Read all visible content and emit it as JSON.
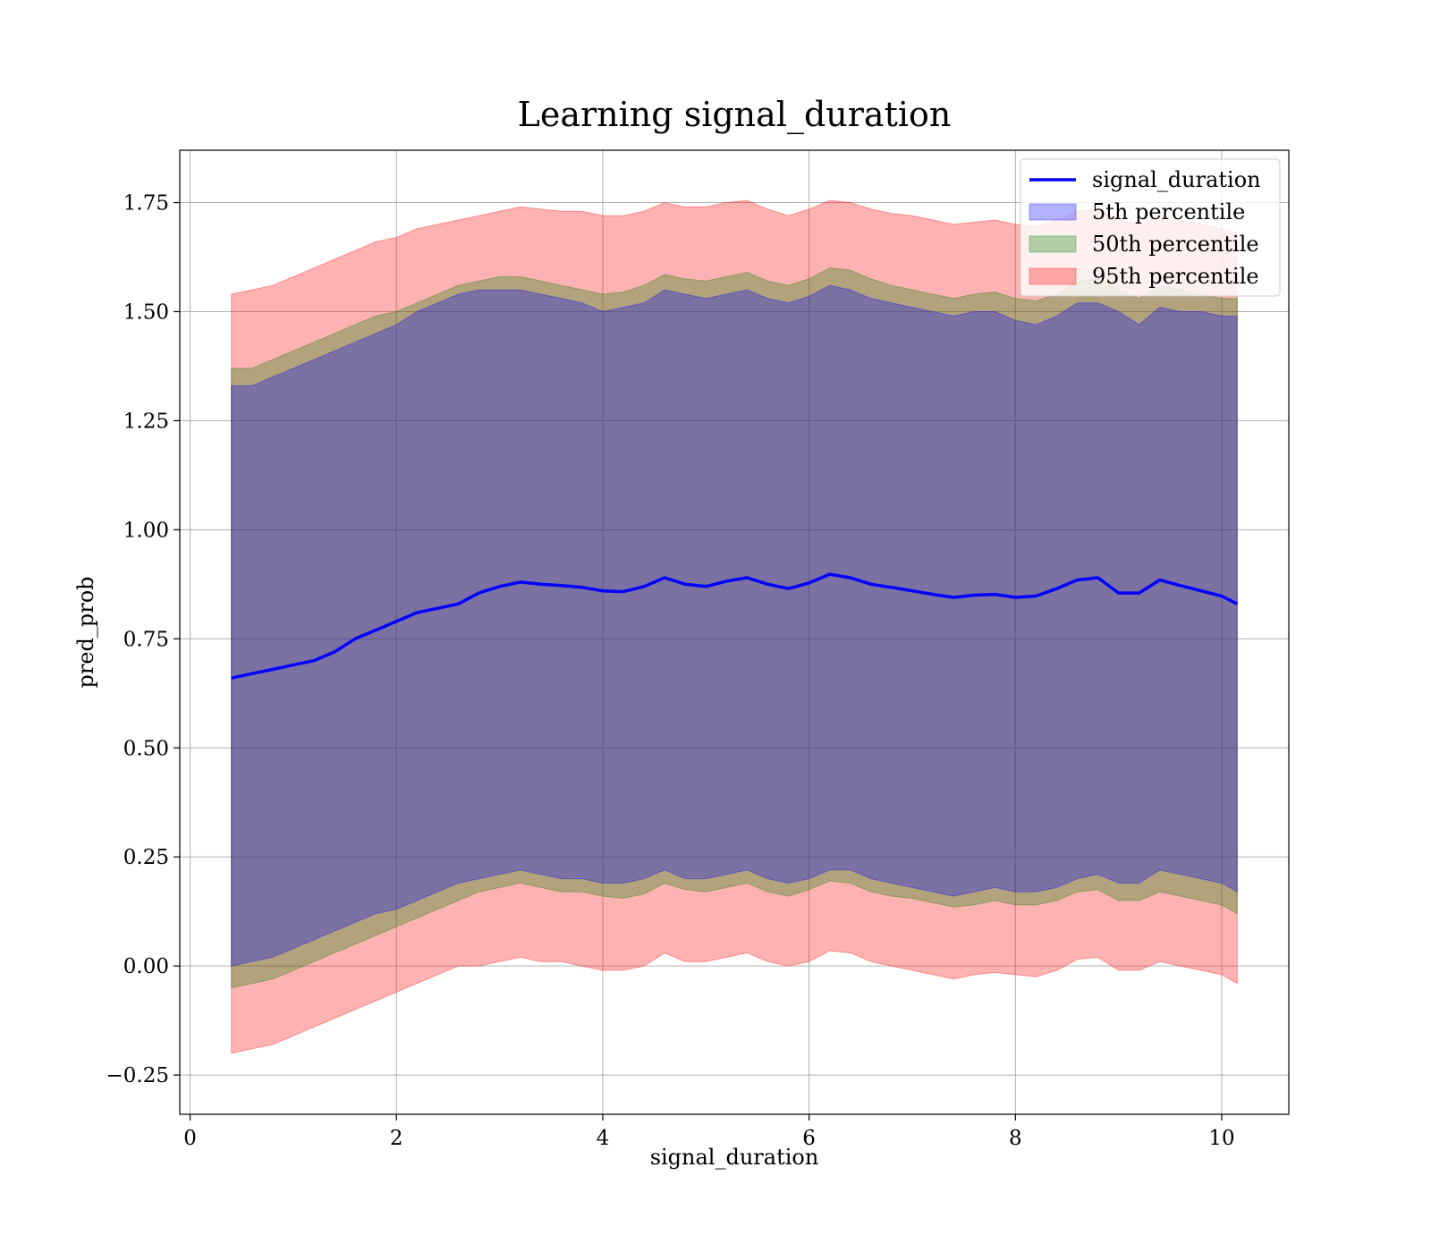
{
  "chart_data": {
    "type": "line",
    "title": "Learning signal_duration",
    "xlabel": "signal_duration",
    "ylabel": "pred_prob",
    "xlim": [
      -0.1,
      10.65
    ],
    "ylim": [
      -0.34,
      1.87
    ],
    "xticks": [
      0,
      2,
      4,
      6,
      8,
      10
    ],
    "xtick_labels": [
      "0",
      "2",
      "4",
      "6",
      "8",
      "10"
    ],
    "yticks": [
      -0.25,
      0.0,
      0.25,
      0.5,
      0.75,
      1.0,
      1.25,
      1.5,
      1.75
    ],
    "ytick_labels": [
      "−0.25",
      "0.00",
      "0.25",
      "0.50",
      "0.75",
      "1.00",
      "1.25",
      "1.50",
      "1.75"
    ],
    "grid": true,
    "legend_position": "top-right",
    "x": [
      0.4,
      0.6,
      0.8,
      1.0,
      1.2,
      1.4,
      1.6,
      1.8,
      2.0,
      2.2,
      2.4,
      2.6,
      2.8,
      3.0,
      3.2,
      3.4,
      3.6,
      3.8,
      4.0,
      4.2,
      4.4,
      4.6,
      4.8,
      5.0,
      5.2,
      5.4,
      5.6,
      5.8,
      6.0,
      6.2,
      6.4,
      6.6,
      6.8,
      7.0,
      7.2,
      7.4,
      7.6,
      7.8,
      8.0,
      8.2,
      8.4,
      8.6,
      8.8,
      9.0,
      9.2,
      9.4,
      9.6,
      9.8,
      10.0,
      10.15
    ],
    "series": [
      {
        "name": "signal_duration",
        "kind": "line",
        "color": "#0000ff",
        "values": [
          0.66,
          0.67,
          0.68,
          0.69,
          0.7,
          0.72,
          0.75,
          0.77,
          0.79,
          0.81,
          0.82,
          0.83,
          0.855,
          0.87,
          0.88,
          0.875,
          0.872,
          0.868,
          0.86,
          0.858,
          0.87,
          0.89,
          0.875,
          0.87,
          0.882,
          0.89,
          0.875,
          0.865,
          0.878,
          0.898,
          0.89,
          0.875,
          0.868,
          0.86,
          0.852,
          0.845,
          0.85,
          0.852,
          0.845,
          0.848,
          0.865,
          0.885,
          0.89,
          0.855,
          0.855,
          0.885,
          0.872,
          0.86,
          0.848,
          0.83
        ]
      },
      {
        "name": "5th percentile",
        "kind": "band",
        "color": "#0000ff",
        "upper": [
          1.33,
          1.33,
          1.35,
          1.37,
          1.39,
          1.41,
          1.43,
          1.45,
          1.47,
          1.5,
          1.52,
          1.54,
          1.55,
          1.55,
          1.55,
          1.54,
          1.53,
          1.52,
          1.5,
          1.51,
          1.52,
          1.55,
          1.54,
          1.53,
          1.54,
          1.55,
          1.53,
          1.52,
          1.535,
          1.56,
          1.55,
          1.53,
          1.52,
          1.51,
          1.5,
          1.49,
          1.5,
          1.5,
          1.48,
          1.47,
          1.49,
          1.52,
          1.52,
          1.5,
          1.47,
          1.51,
          1.5,
          1.5,
          1.49,
          1.49
        ],
        "lower": [
          0.0,
          0.01,
          0.02,
          0.04,
          0.06,
          0.08,
          0.1,
          0.12,
          0.13,
          0.15,
          0.17,
          0.19,
          0.2,
          0.21,
          0.22,
          0.21,
          0.2,
          0.2,
          0.19,
          0.19,
          0.2,
          0.22,
          0.2,
          0.2,
          0.21,
          0.22,
          0.2,
          0.19,
          0.2,
          0.22,
          0.22,
          0.2,
          0.19,
          0.18,
          0.17,
          0.16,
          0.17,
          0.18,
          0.17,
          0.17,
          0.18,
          0.2,
          0.21,
          0.19,
          0.19,
          0.22,
          0.21,
          0.2,
          0.19,
          0.17
        ]
      },
      {
        "name": "50th percentile",
        "kind": "band",
        "color": "#008000",
        "upper": [
          1.37,
          1.37,
          1.39,
          1.41,
          1.43,
          1.45,
          1.47,
          1.49,
          1.5,
          1.52,
          1.54,
          1.56,
          1.57,
          1.58,
          1.58,
          1.57,
          1.56,
          1.55,
          1.54,
          1.545,
          1.56,
          1.585,
          1.575,
          1.57,
          1.58,
          1.59,
          1.57,
          1.56,
          1.575,
          1.6,
          1.595,
          1.575,
          1.56,
          1.55,
          1.54,
          1.53,
          1.54,
          1.545,
          1.53,
          1.525,
          1.54,
          1.57,
          1.575,
          1.55,
          1.53,
          1.56,
          1.55,
          1.54,
          1.53,
          1.53
        ],
        "lower": [
          -0.05,
          -0.04,
          -0.03,
          -0.01,
          0.01,
          0.03,
          0.05,
          0.07,
          0.09,
          0.11,
          0.13,
          0.15,
          0.17,
          0.18,
          0.19,
          0.18,
          0.17,
          0.17,
          0.16,
          0.155,
          0.165,
          0.19,
          0.175,
          0.17,
          0.18,
          0.19,
          0.17,
          0.16,
          0.175,
          0.195,
          0.19,
          0.17,
          0.16,
          0.155,
          0.145,
          0.135,
          0.14,
          0.15,
          0.14,
          0.14,
          0.15,
          0.17,
          0.175,
          0.15,
          0.15,
          0.17,
          0.16,
          0.15,
          0.14,
          0.12
        ]
      },
      {
        "name": "95th percentile",
        "kind": "band",
        "color": "#ff0000",
        "upper": [
          1.54,
          1.55,
          1.56,
          1.58,
          1.6,
          1.62,
          1.64,
          1.66,
          1.67,
          1.69,
          1.7,
          1.71,
          1.72,
          1.73,
          1.74,
          1.735,
          1.73,
          1.73,
          1.72,
          1.72,
          1.73,
          1.75,
          1.74,
          1.74,
          1.75,
          1.755,
          1.735,
          1.72,
          1.735,
          1.755,
          1.75,
          1.735,
          1.725,
          1.72,
          1.71,
          1.7,
          1.705,
          1.71,
          1.7,
          1.695,
          1.71,
          1.73,
          1.735,
          1.71,
          1.7,
          1.72,
          1.71,
          1.7,
          1.69,
          1.68
        ],
        "lower": [
          -0.2,
          -0.19,
          -0.18,
          -0.16,
          -0.14,
          -0.12,
          -0.1,
          -0.08,
          -0.06,
          -0.04,
          -0.02,
          0.0,
          0.0,
          0.01,
          0.02,
          0.01,
          0.01,
          0.0,
          -0.01,
          -0.01,
          0.0,
          0.03,
          0.01,
          0.01,
          0.02,
          0.03,
          0.01,
          0.0,
          0.01,
          0.035,
          0.03,
          0.01,
          0.0,
          -0.01,
          -0.02,
          -0.03,
          -0.02,
          -0.015,
          -0.02,
          -0.025,
          -0.01,
          0.015,
          0.02,
          -0.01,
          -0.01,
          0.01,
          0.0,
          -0.01,
          -0.02,
          -0.04
        ]
      }
    ]
  }
}
